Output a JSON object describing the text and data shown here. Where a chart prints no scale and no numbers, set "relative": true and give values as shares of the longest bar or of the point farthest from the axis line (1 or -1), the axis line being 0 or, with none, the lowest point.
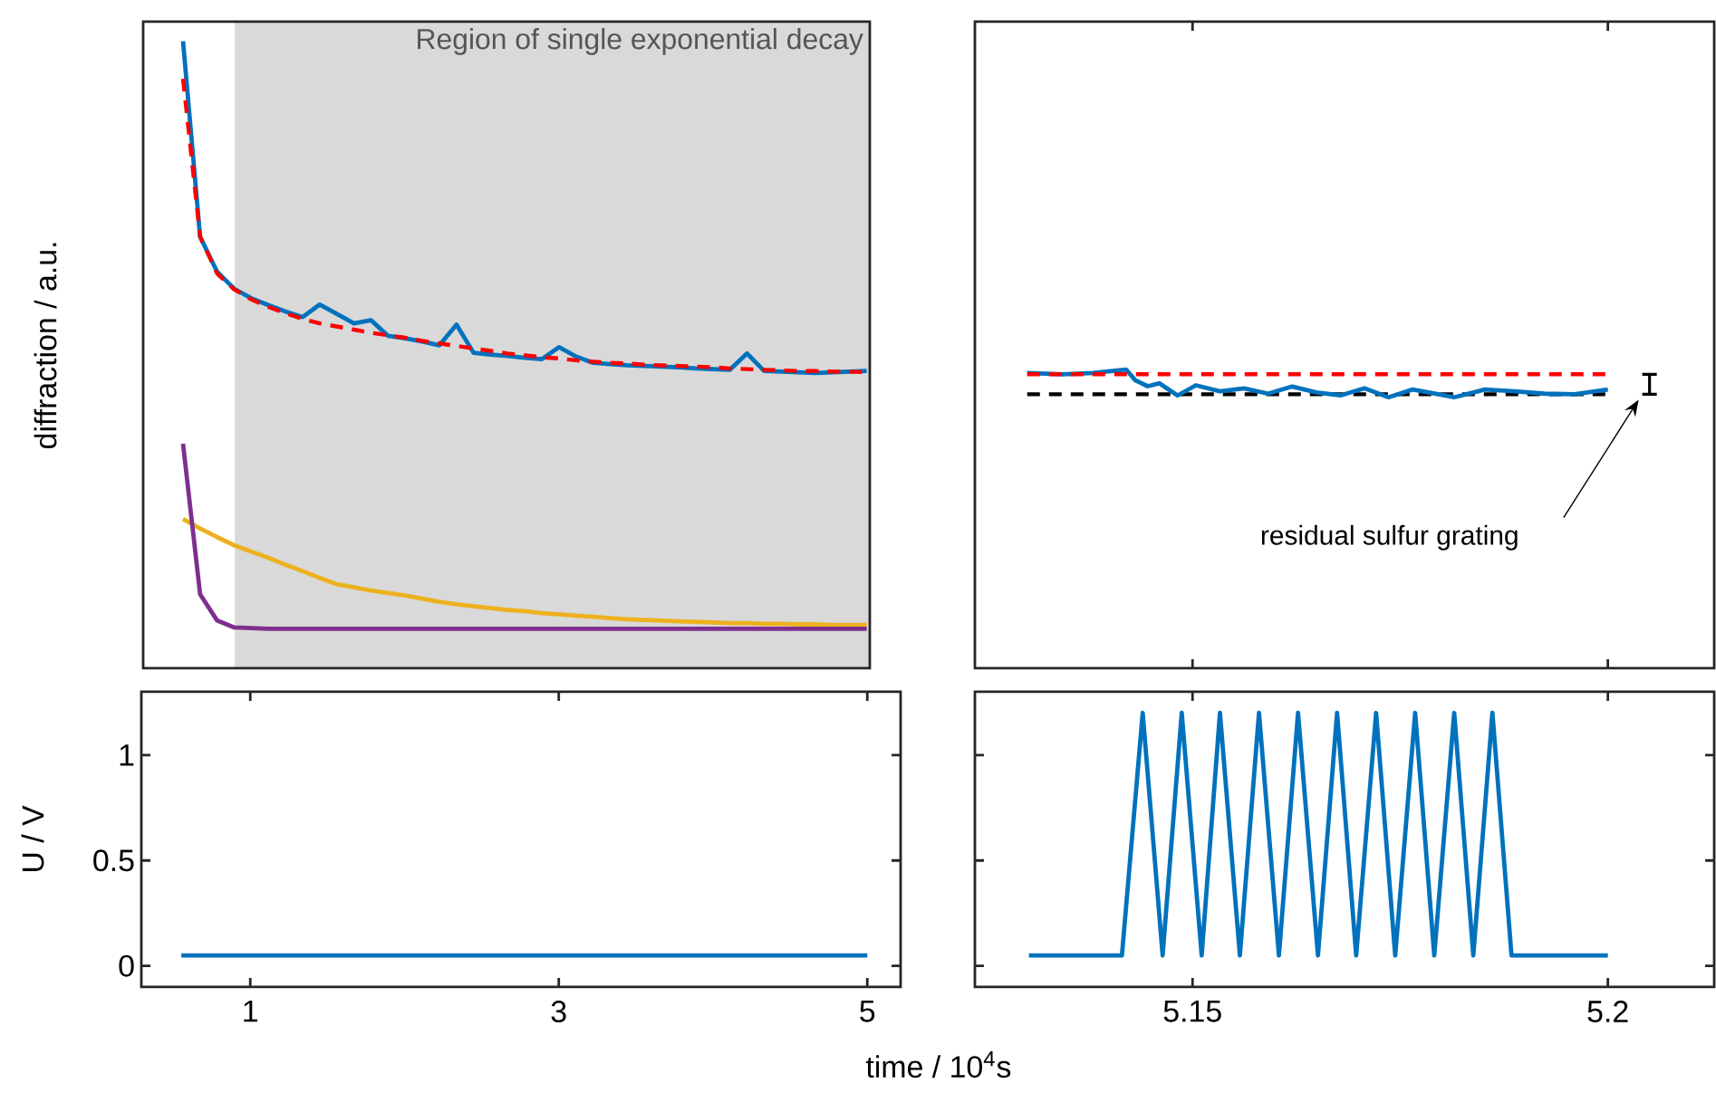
{
  "chart_data": [
    {
      "type": "line",
      "ylabel": "diffraction / a.u.",
      "relative": true,
      "categories": [
        null,
        null,
        null,
        null,
        null,
        null,
        null,
        null,
        null,
        null,
        null,
        null,
        null,
        null,
        null,
        null,
        null,
        null,
        null,
        null,
        null,
        null,
        null,
        null,
        null,
        null,
        null,
        null,
        null,
        null,
        null,
        null,
        null,
        null,
        null,
        null,
        null,
        null,
        null,
        null,
        null
      ],
      "annotations": [
        "Region of single exponential decay"
      ],
      "series": [
        {
          "color": "#edb120",
          "values": [
            0.238,
            0.223,
            0.209,
            0.196,
            0.186,
            0.176,
            0.165,
            0.155,
            0.144,
            0.134,
            0.129,
            0.124,
            0.12,
            0.116,
            0.111,
            0.106,
            0.102,
            0.099,
            0.096,
            0.093,
            0.091,
            0.088,
            0.086,
            0.084,
            0.082,
            0.08,
            0.078,
            0.077,
            0.076,
            0.075,
            0.074,
            0.073,
            0.072,
            0.072,
            0.071,
            0.071,
            0.07,
            0.07,
            0.069,
            0.069,
            0.069
          ]
        },
        {
          "color": "#7e2f8e",
          "values": [
            0.358,
            0.118,
            0.076,
            0.065,
            0.064,
            0.063,
            0.063,
            0.063,
            0.063,
            0.063,
            0.063,
            0.063,
            0.063,
            0.063,
            0.063,
            0.063,
            0.063,
            0.063,
            0.063,
            0.063,
            0.063,
            0.063,
            0.063,
            0.063,
            0.063,
            0.063,
            0.063,
            0.063,
            0.063,
            0.063,
            0.063,
            0.063,
            0.063,
            0.063,
            0.063,
            0.063,
            0.063,
            0.063,
            0.063,
            0.063,
            0.063
          ]
        },
        {
          "color": "#0072bd",
          "values": [
            1.0,
            0.688,
            0.632,
            0.605,
            0.59,
            0.579,
            0.569,
            0.56,
            0.58,
            0.565,
            0.55,
            0.555,
            0.53,
            0.526,
            0.521,
            0.515,
            0.548,
            0.503,
            0.5,
            0.498,
            0.495,
            0.493,
            0.512,
            0.497,
            0.487,
            0.485,
            0.483,
            0.482,
            0.481,
            0.48,
            0.478,
            0.477,
            0.476,
            0.502,
            0.474,
            0.473,
            0.472,
            0.471,
            0.472,
            0.473,
            0.474
          ]
        },
        {
          "color": "#ff0000",
          "line_style": "dashed",
          "values": [
            0.94,
            0.688,
            0.629,
            0.604,
            0.588,
            0.576,
            0.566,
            0.557,
            0.55,
            0.545,
            0.54,
            0.535,
            0.531,
            0.527,
            0.522,
            0.518,
            0.514,
            0.51,
            0.506,
            0.502,
            0.499,
            0.496,
            0.494,
            0.491,
            0.489,
            0.487,
            0.486,
            0.484,
            0.483,
            0.482,
            0.481,
            0.48,
            0.478,
            0.477,
            0.476,
            0.475,
            0.474,
            0.474,
            0.473,
            0.473,
            0.472
          ]
        }
      ]
    },
    {
      "type": "line",
      "relative": true,
      "xlim": [
        5.1238,
        5.2128
      ],
      "xticks": [
        {
          "value": 5.15,
          "label": null
        },
        {
          "value": 5.2,
          "label": null
        }
      ],
      "tick_labels": false,
      "annotations": [
        "residual sulfur grating"
      ],
      "series": [
        {
          "color": "#000000",
          "line_style": "dashed",
          "x": [
            5.1301,
            5.2
          ],
          "values": [
            0.917,
            0.917
          ]
        },
        {
          "color": "#0072bd",
          "x": [
            5.1301,
            5.1344,
            5.138,
            5.142,
            5.1431,
            5.1446,
            5.146,
            5.1482,
            5.1504,
            5.1533,
            5.1562,
            5.1591,
            5.162,
            5.1649,
            5.1678,
            5.1707,
            5.1736,
            5.1765,
            5.1815,
            5.1852,
            5.1888,
            5.1924,
            5.196,
            5.2
          ],
          "values": [
            0.988,
            0.984,
            0.988,
            1.0,
            0.964,
            0.944,
            0.954,
            0.913,
            0.947,
            0.927,
            0.937,
            0.919,
            0.943,
            0.923,
            0.913,
            0.937,
            0.907,
            0.933,
            0.907,
            0.933,
            0.927,
            0.919,
            0.917,
            0.933
          ]
        },
        {
          "color": "#ff0000",
          "line_style": "dashed",
          "x": [
            5.1301,
            5.2
          ],
          "values": [
            0.984,
            0.984
          ]
        }
      ]
    },
    {
      "type": "line",
      "xlabel": "time / 10$^{4}$s",
      "ylabel": "U / V",
      "xlim": [
        0.294,
        5.216
      ],
      "ylim": [
        -0.1,
        1.3
      ],
      "xticks": [
        1,
        3,
        5
      ],
      "yticks": [
        0,
        0.5,
        1
      ],
      "series": [
        {
          "color": "#0072bd",
          "x": [
            0.553,
            5.0
          ],
          "values": [
            0.05,
            0.05
          ]
        }
      ]
    },
    {
      "type": "line",
      "xlim": [
        5.1238,
        5.2128
      ],
      "ylim": [
        -0.1,
        1.3
      ],
      "xticks": [
        5.15,
        5.2
      ],
      "yticks": [
        {
          "value": 0,
          "label": null
        },
        {
          "value": 0.5,
          "label": null
        },
        {
          "value": 1,
          "label": null
        }
      ],
      "tick_labels": "x",
      "series": [
        {
          "color": "#0072bd",
          "x": [
            5.1303,
            5.1415,
            5.144,
            5.1464,
            5.1487,
            5.1511,
            5.1533,
            5.1557,
            5.158,
            5.1604,
            5.1627,
            5.1651,
            5.1674,
            5.1697,
            5.1721,
            5.1744,
            5.1768,
            5.1791,
            5.1815,
            5.1838,
            5.1861,
            5.1884,
            5.2
          ],
          "values": [
            0.05,
            0.05,
            1.2,
            0.05,
            1.2,
            0.05,
            1.2,
            0.05,
            1.2,
            0.05,
            1.2,
            0.05,
            1.2,
            0.05,
            1.2,
            0.05,
            1.2,
            0.05,
            1.2,
            0.05,
            1.2,
            0.05,
            0.05
          ]
        }
      ]
    }
  ]
}
